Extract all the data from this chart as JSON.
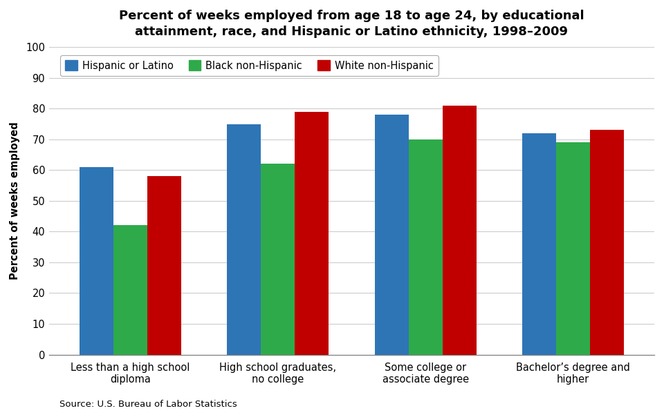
{
  "title": "Percent of weeks employed from age 18 to age 24, by educational\nattainment, race, and Hispanic or Latino ethnicity, 1998–2009",
  "ylabel": "Percent of weeks employed",
  "categories": [
    "Less than a high school\ndiploma",
    "High school graduates,\nno college",
    "Some college or\nassociate degree",
    "Bachelor’s degree and\nhigher"
  ],
  "series": {
    "Hispanic or Latino": [
      61,
      75,
      78,
      72
    ],
    "Black non-Hispanic": [
      42,
      62,
      70,
      69
    ],
    "White non-Hispanic": [
      58,
      79,
      81,
      73
    ]
  },
  "colors": {
    "Hispanic or Latino": "#2E75B6",
    "Black non-Hispanic": "#2EAA4A",
    "White non-Hispanic": "#C00000"
  },
  "ylim": [
    0,
    100
  ],
  "yticks": [
    0,
    10,
    20,
    30,
    40,
    50,
    60,
    70,
    80,
    90,
    100
  ],
  "source": "Source: U.S. Bureau of Labor Statistics",
  "background_color": "#FFFFFF",
  "title_fontsize": 13,
  "legend_fontsize": 10.5,
  "ylabel_fontsize": 10.5,
  "tick_fontsize": 10.5,
  "source_fontsize": 9.5,
  "bar_width": 0.23,
  "group_width": 1.0
}
